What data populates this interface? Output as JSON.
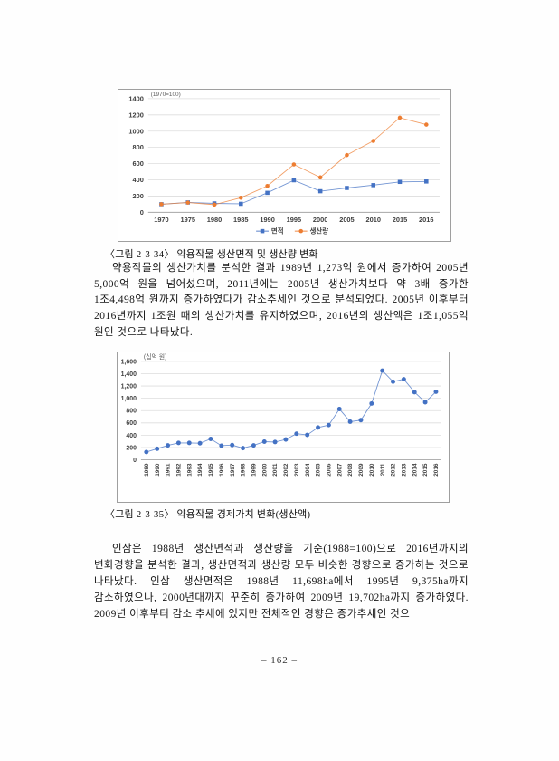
{
  "page": {
    "number_label": "– 162 –"
  },
  "figures": [
    {
      "caption": "〈그림 2-3-34〉 약용작물 생산면적 및 생산량 변화"
    },
    {
      "caption": "〈그림 2-3-35〉 약용작물 경제가치 변화(생산액)"
    }
  ],
  "paragraphs": [
    "약용작물의 생산가치를 분석한 결과 1989년 1,273억 원에서 증가하여 2005년 5,000억 원을 넘어섰으며, 2011년에는 2005년 생산가치보다 약 3배 증가한 1조4,498억 원까지 증가하였다가 감소추세인 것으로 분석되었다. 2005년 이후부터 2016년까지 1조원 때의 생산가치를 유지하였으며, 2016년의 생산액은 1조1,055억 원인 것으로 나타났다.",
    "인삼은 1988년 생산면적과 생산량을 기준(1988=100)으로 2016년까지의 변화경향을 분석한 결과, 생산면적과 생산량 모두 비슷한 경향으로 증가하는 것으로 나타났다. 인삼 생산면적은 1988년 11,698ha에서 1995년 9,375ha까지 감소하였으나, 2000년대까지 꾸준히 증가하여 2009년 19,702ha까지 증가하였다. 2009년 이후부터 감소 추세에 있지만 전체적인 경향은 증가추세인 것으"
  ],
  "chart_data": [
    {
      "type": "line",
      "title": "",
      "unit_label": "(1970=100)",
      "categories": [
        "1970",
        "1975",
        "1980",
        "1985",
        "1990",
        "1995",
        "2000",
        "2005",
        "2010",
        "2015",
        "2016"
      ],
      "series": [
        {
          "name": "면적",
          "color": "#4472C4",
          "marker": "square",
          "values": [
            100,
            122,
            110,
            105,
            240,
            395,
            260,
            300,
            335,
            375,
            380
          ]
        },
        {
          "name": "생산량",
          "color": "#ED7D31",
          "marker": "circle",
          "values": [
            100,
            120,
            95,
            180,
            325,
            590,
            430,
            705,
            880,
            1165,
            1080
          ]
        }
      ],
      "ylim": [
        0,
        1400
      ],
      "ytick": 200,
      "y_tick_labels": [
        "0",
        "200",
        "400",
        "600",
        "800",
        "1000",
        "1200",
        "1400"
      ],
      "grid": true,
      "legend_position": "bottom"
    },
    {
      "type": "line",
      "title": "",
      "unit_label": "(십억 원)",
      "categories": [
        "1989",
        "1990",
        "1991",
        "1992",
        "1993",
        "1994",
        "1995",
        "1996",
        "1997",
        "1998",
        "1999",
        "2000",
        "2001",
        "2002",
        "2003",
        "2004",
        "2005",
        "2006",
        "2007",
        "2008",
        "2009",
        "2010",
        "2011",
        "2012",
        "2013",
        "2014",
        "2015",
        "2016"
      ],
      "series": [
        {
          "name": "생산액",
          "color": "#4472C4",
          "marker": "circle",
          "values": [
            127,
            180,
            235,
            275,
            275,
            270,
            340,
            230,
            240,
            190,
            235,
            295,
            290,
            330,
            425,
            405,
            525,
            565,
            825,
            620,
            645,
            915,
            1450,
            1270,
            1310,
            1100,
            935,
            1106
          ]
        }
      ],
      "ylim": [
        0,
        1600
      ],
      "ytick": 200,
      "y_tick_labels": [
        "0",
        "200",
        "400",
        "600",
        "800",
        "1,000",
        "1,200",
        "1,400",
        "1,600"
      ],
      "grid": true,
      "legend_position": "none"
    }
  ]
}
